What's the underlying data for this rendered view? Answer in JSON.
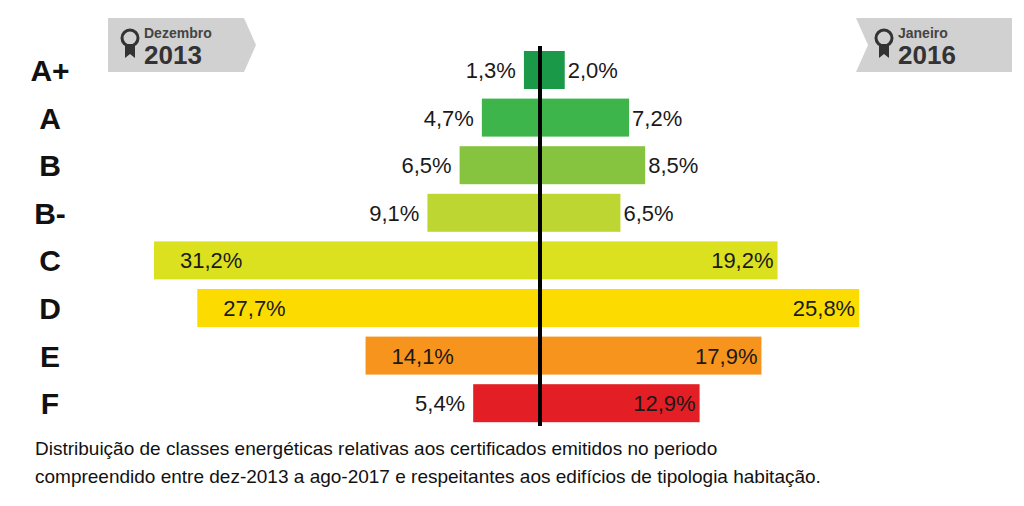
{
  "chart_data": {
    "type": "bar",
    "orientation": "horizontal",
    "data_labels": true,
    "tick_labels": "y",
    "grid": false,
    "categories": [
      "A+",
      "A",
      "B",
      "B-",
      "C",
      "D",
      "E",
      "F"
    ],
    "colors": [
      "#1a9a48",
      "#3db54a",
      "#86c440",
      "#bdd631",
      "#dbe11f",
      "#fcdc00",
      "#f7941d",
      "#e31e24"
    ],
    "series": [
      {
        "name": "Dezembro 2013",
        "values": [
          1.3,
          4.7,
          6.5,
          9.1,
          31.2,
          27.7,
          14.1,
          5.4
        ],
        "value_labels": [
          "1,3%",
          "4,7%",
          "6,5%",
          "9,1%",
          "31,2%",
          "27,7%",
          "14,1%",
          "5,4%"
        ]
      },
      {
        "name": "Janeiro 2016",
        "values": [
          2.0,
          7.2,
          8.5,
          6.5,
          19.2,
          25.8,
          17.9,
          12.9
        ],
        "value_labels": [
          "2,0%",
          "7,2%",
          "8,5%",
          "6,5%",
          "19,2%",
          "25,8%",
          "17,9%",
          "12,9%"
        ]
      }
    ],
    "annotations": [
      "Distribuição de classes energéticas relativas aos certificados emitidos no periodo",
      "compreendido entre dez-2013 a ago-2017 e respeitantes aos edifícios de tipologia habitação."
    ]
  }
}
